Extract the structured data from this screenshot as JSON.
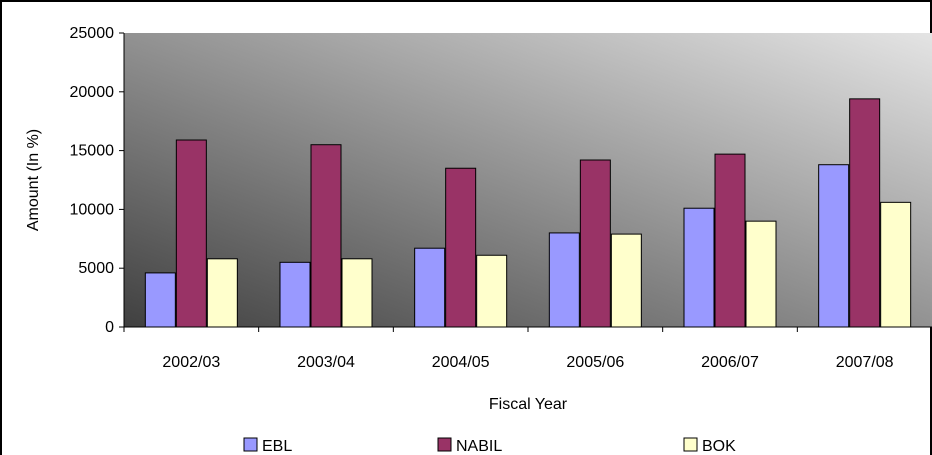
{
  "chart_data": {
    "type": "bar",
    "title": "",
    "xlabel": "Fiscal Year",
    "ylabel": "Amount (In %)",
    "categories": [
      "2002/03",
      "2003/04",
      "2004/05",
      "2005/06",
      "2006/07",
      "2007/08"
    ],
    "ylim": [
      0,
      25000
    ],
    "yticks": [
      0,
      5000,
      10000,
      15000,
      20000,
      25000
    ],
    "ytick_labels": [
      "0",
      "5000",
      "10000",
      "15000",
      "20000",
      "25000"
    ],
    "grid": false,
    "legend_position": "bottom",
    "series": [
      {
        "name": "EBL",
        "color": "#9999ff",
        "values": [
          4600,
          5500,
          6700,
          8000,
          10100,
          13800
        ]
      },
      {
        "name": "NABIL",
        "color": "#993366",
        "values": [
          15900,
          15500,
          13500,
          14200,
          14700,
          19400
        ]
      },
      {
        "name": "BOK",
        "color": "#ffffcc",
        "values": [
          5800,
          5800,
          6100,
          7900,
          9000,
          10600
        ]
      }
    ]
  }
}
